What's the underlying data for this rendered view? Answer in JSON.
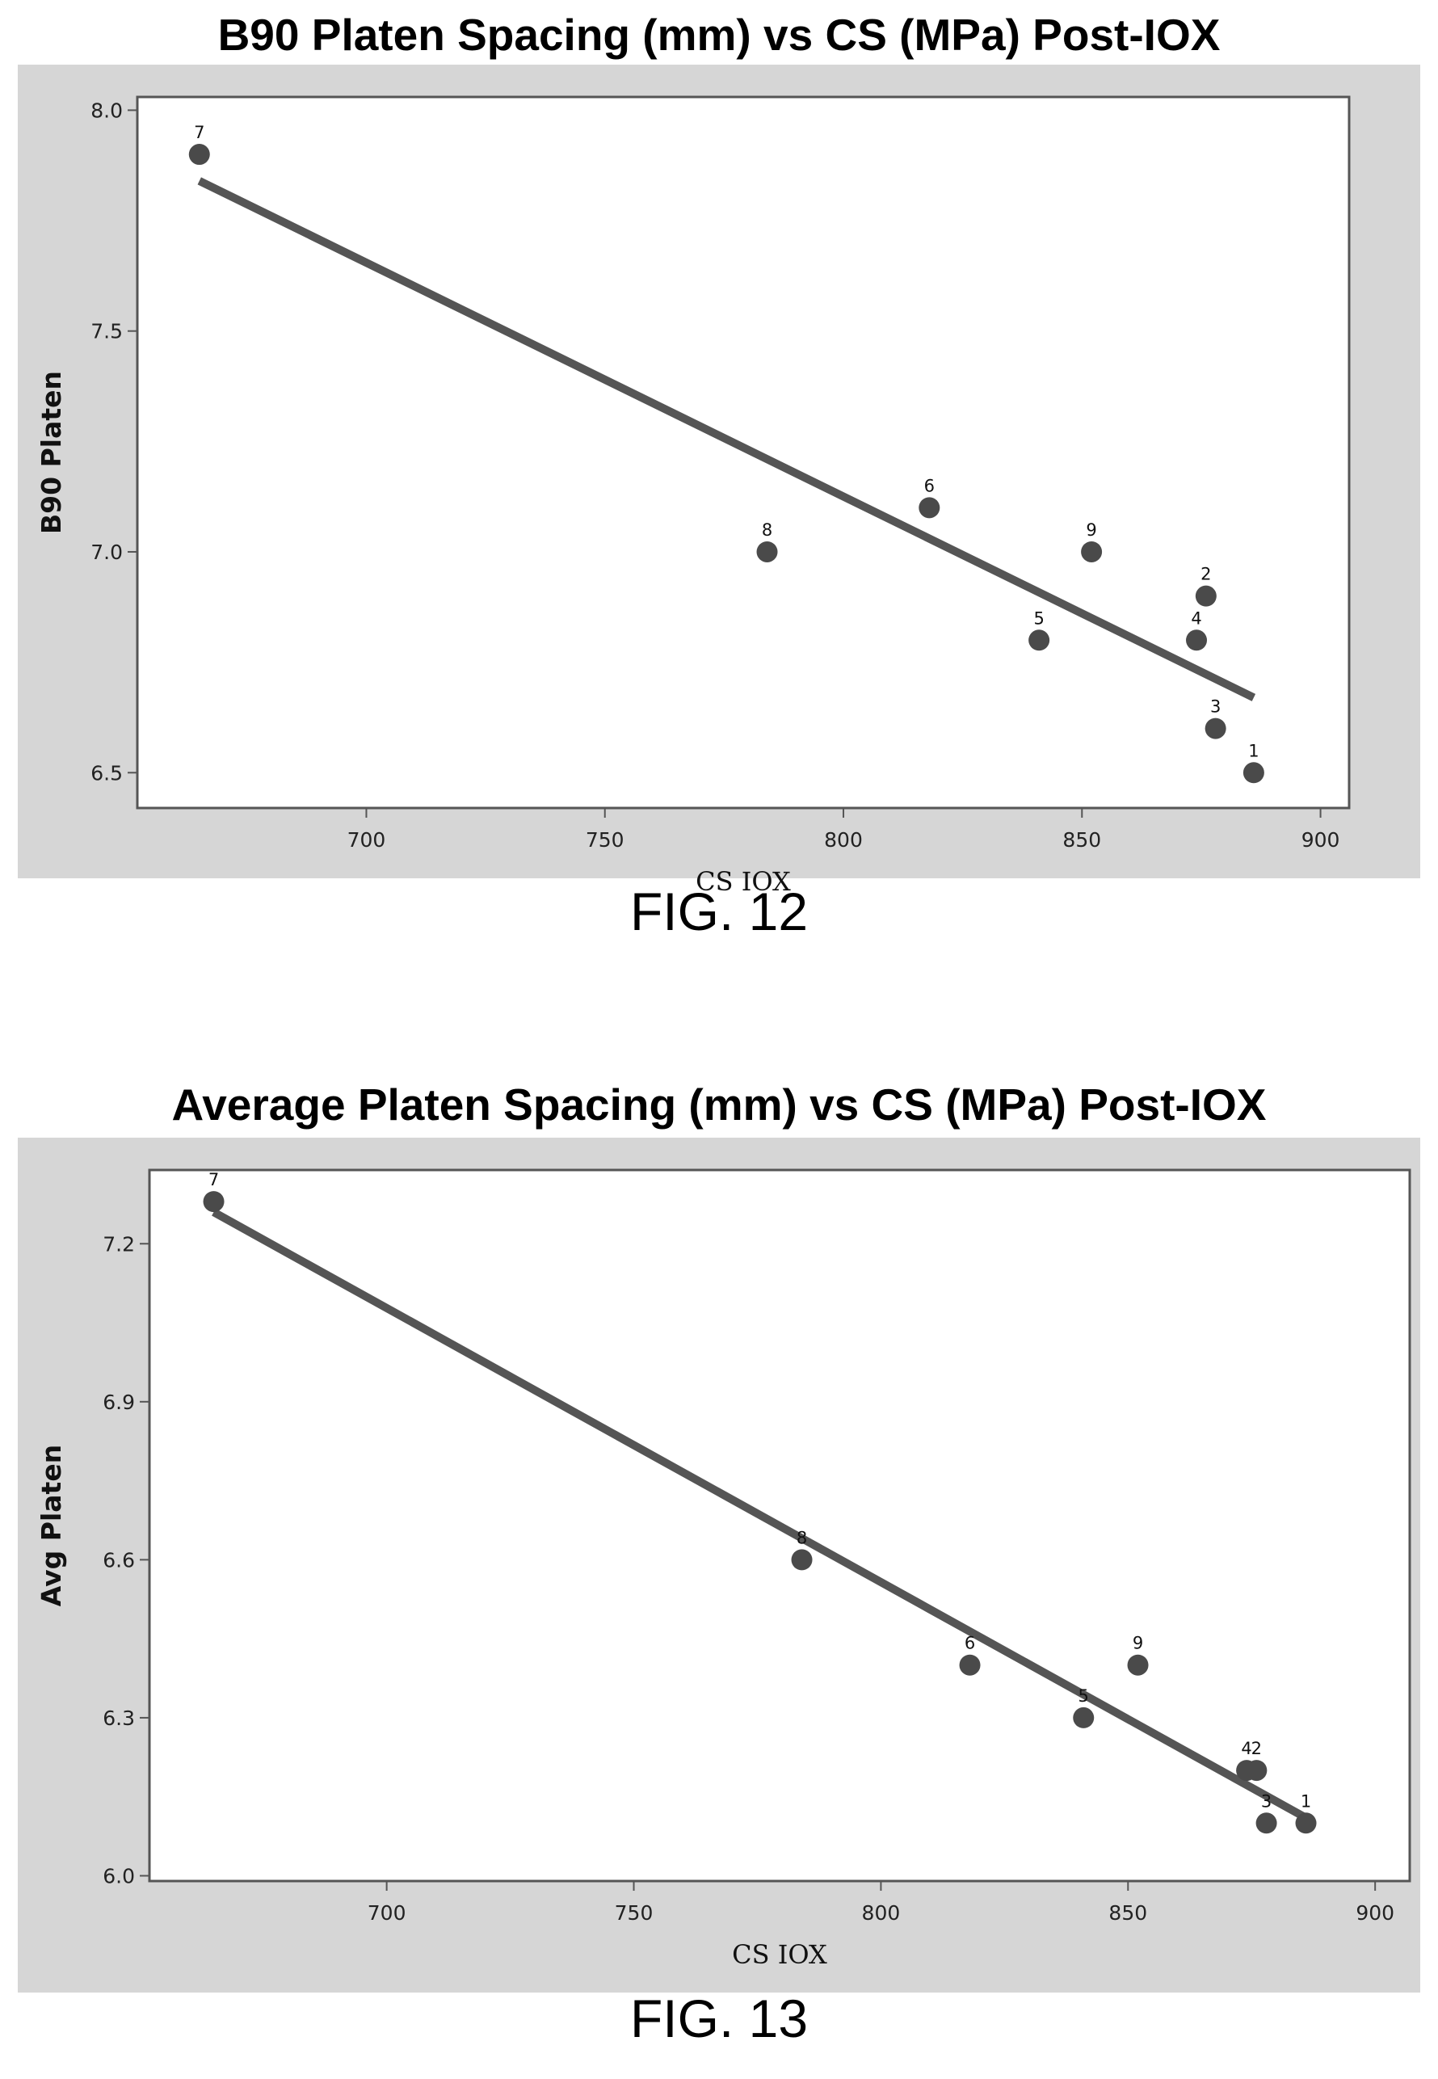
{
  "chart_data": [
    {
      "type": "scatter",
      "title": "B90 Platen Spacing (mm) vs CS (MPa) Post-IOX",
      "caption": "FIG. 12",
      "xlabel": "CS IOX",
      "ylabel": "B90 Platen",
      "xlim": [
        652,
        906
      ],
      "ylim": [
        6.42,
        8.03
      ],
      "xticks": [
        700,
        750,
        800,
        850,
        900
      ],
      "yticks": [
        6.5,
        7.0,
        7.5,
        8.0
      ],
      "ytick_labels": [
        "6.5",
        "7.0",
        "7.5",
        "8.0"
      ],
      "grid": false,
      "points": [
        {
          "label": "7",
          "x": 665,
          "y": 7.9
        },
        {
          "label": "8",
          "x": 784,
          "y": 7.0
        },
        {
          "label": "6",
          "x": 818,
          "y": 7.1
        },
        {
          "label": "5",
          "x": 841,
          "y": 6.8
        },
        {
          "label": "9",
          "x": 852,
          "y": 7.0
        },
        {
          "label": "2",
          "x": 876,
          "y": 6.9
        },
        {
          "label": "4",
          "x": 874,
          "y": 6.8
        },
        {
          "label": "3",
          "x": 878,
          "y": 6.6
        },
        {
          "label": "1",
          "x": 886,
          "y": 6.5
        }
      ],
      "fit_line": {
        "x": [
          665,
          886
        ],
        "y": [
          7.84,
          6.67
        ]
      }
    },
    {
      "type": "scatter",
      "title": "Average Platen Spacing (mm) vs CS (MPa) Post-IOX",
      "caption": "FIG. 13",
      "xlabel": "CS IOX",
      "ylabel": "Avg Platen",
      "xlim": [
        652,
        907
      ],
      "ylim": [
        5.99,
        7.34
      ],
      "xticks": [
        700,
        750,
        800,
        850,
        900
      ],
      "yticks": [
        6.0,
        6.3,
        6.6,
        6.9,
        7.2
      ],
      "ytick_labels": [
        "6.0",
        "6.3",
        "6.6",
        "6.9",
        "7.2"
      ],
      "grid": false,
      "points": [
        {
          "label": "7",
          "x": 665,
          "y": 7.28
        },
        {
          "label": "8",
          "x": 784,
          "y": 6.6
        },
        {
          "label": "6",
          "x": 818,
          "y": 6.4
        },
        {
          "label": "5",
          "x": 841,
          "y": 6.3
        },
        {
          "label": "9",
          "x": 852,
          "y": 6.4
        },
        {
          "label": "4",
          "x": 874,
          "y": 6.2
        },
        {
          "label": "2",
          "x": 876,
          "y": 6.2
        },
        {
          "label": "3",
          "x": 878,
          "y": 6.1
        },
        {
          "label": "1",
          "x": 886,
          "y": 6.1
        }
      ],
      "fit_line": {
        "x": [
          665,
          886
        ],
        "y": [
          7.26,
          6.11
        ]
      }
    }
  ]
}
